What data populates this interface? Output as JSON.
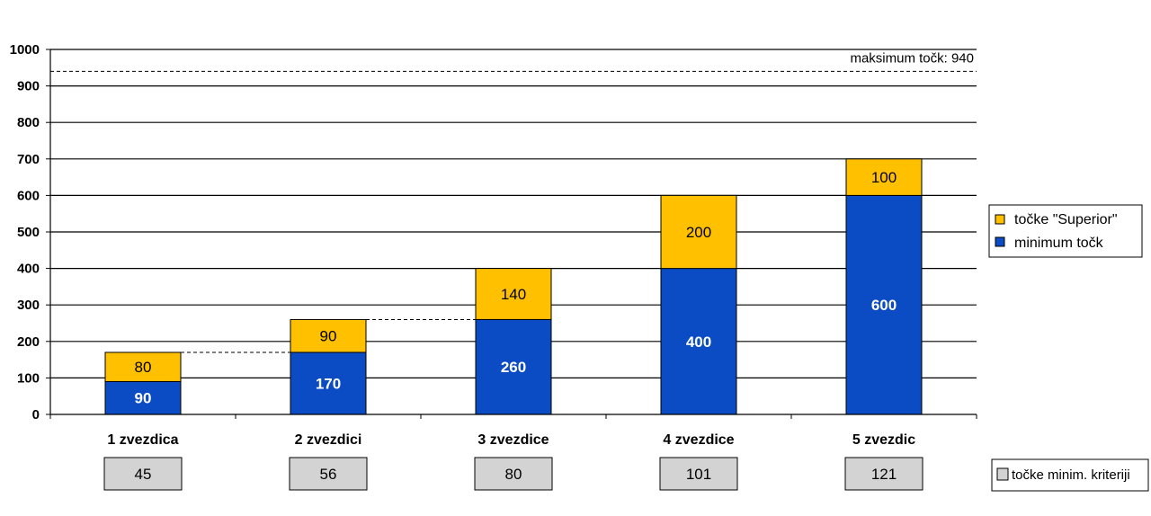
{
  "chart_data": {
    "type": "bar",
    "stacked": true,
    "categories": [
      "1 zvezdica",
      "2 zvezdici",
      "3 zvezdice",
      "4 zvezdice",
      "5 zvezdic"
    ],
    "series": [
      {
        "name": "minimum točk",
        "values": [
          90,
          170,
          260,
          400,
          600
        ],
        "color": "#0B4CC5"
      },
      {
        "name": "točke \"Superior\"",
        "values": [
          80,
          90,
          140,
          200,
          100
        ],
        "color": "#FFC000"
      }
    ],
    "ylim": [
      0,
      1000
    ],
    "yticks": [
      "0",
      "100",
      "200",
      "300",
      "400",
      "500",
      "600",
      "700",
      "800",
      "900",
      "1000"
    ],
    "grid": true,
    "legend": "right",
    "max_line": {
      "value": 940,
      "label": "maksimum točk: 940"
    },
    "criteria": {
      "legend": "točke minim. kriteriji",
      "values": [
        "45",
        "56",
        "80",
        "101",
        "121"
      ]
    }
  }
}
